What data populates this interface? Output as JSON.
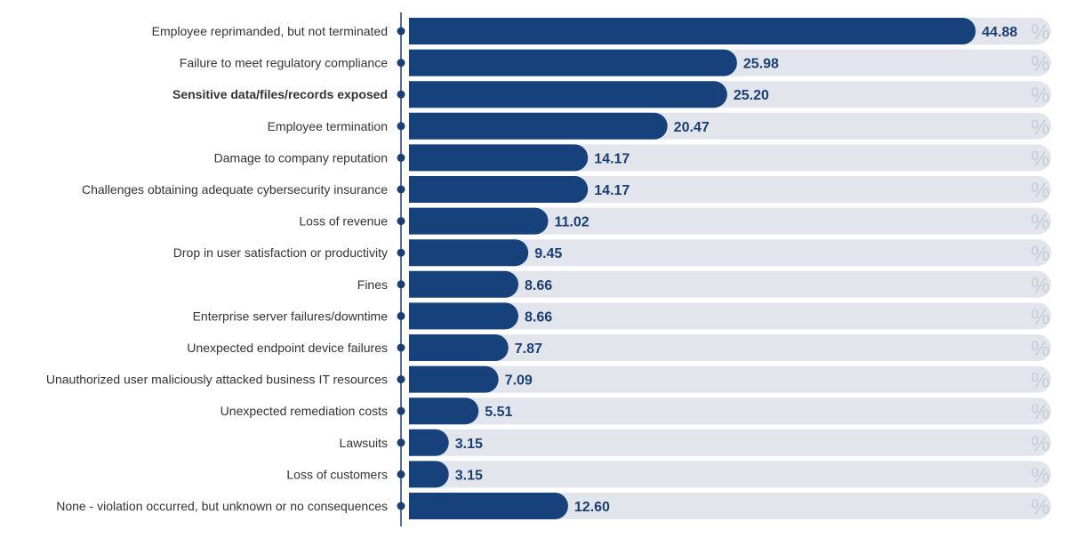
{
  "chart_data": {
    "type": "bar",
    "orientation": "horizontal",
    "title": "",
    "xlabel": "",
    "ylabel": "",
    "xlim": [
      0,
      100
    ],
    "value_suffix": "%",
    "bar_color": "#17417a",
    "track_color": "#e2e5eb",
    "axis_color": "#1b3f73",
    "emphasized_category": "Sensitive data/files/records exposed",
    "categories": [
      "Employee reprimanded, but not terminated",
      "Failure to meet regulatory compliance",
      "Sensitive data/files/records exposed",
      "Employee termination",
      "Damage to company reputation",
      "Challenges obtaining adequate cybersecurity insurance",
      "Loss of revenue",
      "Drop in user satisfaction or productivity",
      "Fines",
      "Enterprise server failures/downtime",
      "Unexpected endpoint device failures",
      "Unauthorized user maliciously attacked  business IT resources",
      "Unexpected remediation costs",
      "Lawsuits",
      "Loss of customers",
      "None - violation occurred, but unknown or no consequences"
    ],
    "values": [
      44.88,
      25.98,
      25.2,
      20.47,
      14.17,
      14.17,
      11.02,
      9.45,
      8.66,
      8.66,
      7.87,
      7.09,
      5.51,
      3.15,
      3.15,
      12.6
    ],
    "value_labels": [
      "44.88",
      "25.98",
      "25.20",
      "20.47",
      "14.17",
      "14.17",
      "11.02",
      "9.45",
      "8.66",
      "8.66",
      "7.87",
      "7.09",
      "5.51",
      "3.15",
      "3.15",
      "12.60"
    ]
  }
}
